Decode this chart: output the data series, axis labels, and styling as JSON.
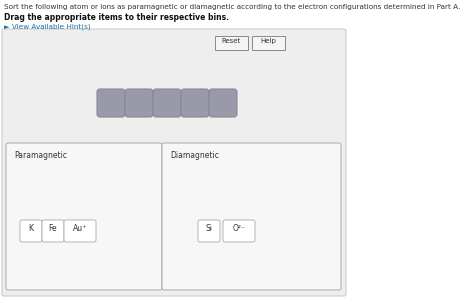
{
  "title_line1": "Sort the following atom or ions as paramagnetic or diamagnetic according to the electron configurations determined in Part A.",
  "title_line2": "Drag the appropriate items to their respective bins.",
  "hint_text": "► View Available Hint(s)",
  "bg_color": "#ffffff",
  "outer_box_color": "#eeeeee",
  "outer_box_edge": "#cccccc",
  "inner_box_color": "#f7f7f7",
  "inner_box_edge": "#aaaaaa",
  "button_bg": "#f5f5f5",
  "button_edge": "#888888",
  "tile_color": "#9999aa",
  "tile_edge": "#888899",
  "paramagnetic_label": "Paramagnetic",
  "diamagnetic_label": "Diamagnetic",
  "para_items": [
    "K",
    "Fe",
    "Au⁺"
  ],
  "dia_items": [
    "Si",
    "O²⁻"
  ],
  "reset_label": "Reset",
  "help_label": "Help",
  "n_tiles": 5,
  "hint_color": "#1a6fa8",
  "text_color": "#333333",
  "bold_text_color": "#111111"
}
